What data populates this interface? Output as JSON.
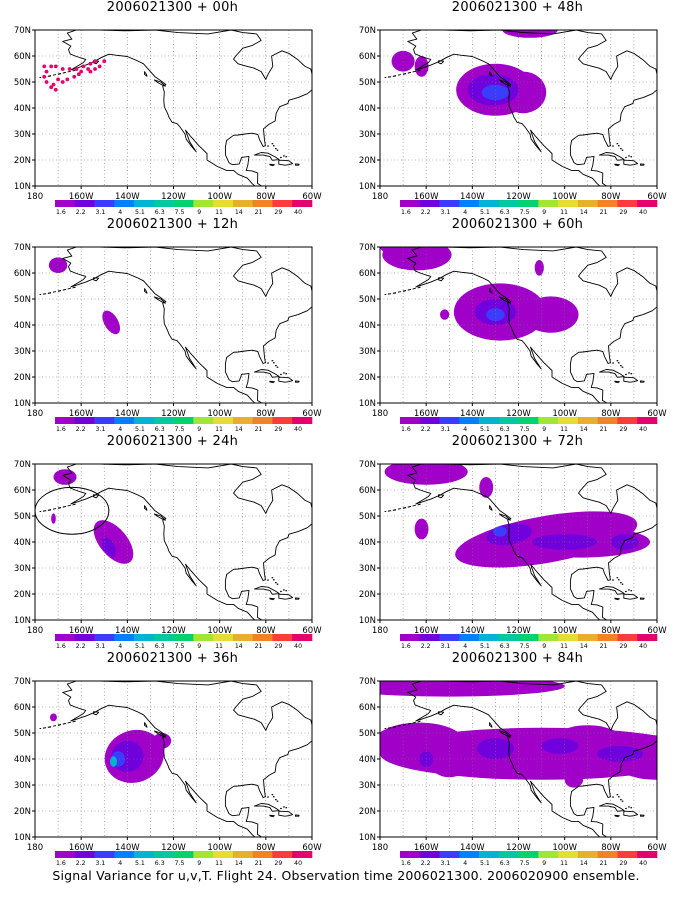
{
  "figure": {
    "footer": "Signal Variance for u,v,T. Flight 24. Observation time 2006021300. 2006020900 ensemble.",
    "lat_labels": [
      "10N",
      "20N",
      "30N",
      "40N",
      "50N",
      "60N",
      "70N"
    ],
    "lon_labels": [
      "180",
      "160W",
      "140W",
      "120W",
      "100W",
      "80W",
      "60W"
    ],
    "colorbar": {
      "labels": [
        "1.6",
        "2.2",
        "3.1",
        "4",
        "5.1",
        "6.3",
        "7.5",
        "9",
        "11",
        "14",
        "21",
        "29",
        "40"
      ],
      "colors": [
        "#a000c8",
        "#7000dc",
        "#3c3cff",
        "#0080ff",
        "#00b4d2",
        "#00c8a0",
        "#00d26e",
        "#a0e632",
        "#e6dc32",
        "#e6af2d",
        "#f08228",
        "#fa3c3c",
        "#e6006e"
      ]
    },
    "field_colors": {
      "low": "#a000c8",
      "mid": "#7000dc",
      "high": "#3c3cff",
      "peak": "#00b4d2",
      "obs": "#e6006e"
    },
    "panels": [
      {
        "title": "2006021300 + 00h"
      },
      {
        "title": "2006021300 + 48h"
      },
      {
        "title": "2006021300 + 12h"
      },
      {
        "title": "2006021300 + 60h"
      },
      {
        "title": "2006021300 + 24h"
      },
      {
        "title": "2006021300 + 72h"
      },
      {
        "title": "2006021300 + 36h"
      },
      {
        "title": "2006021300 + 84h"
      }
    ]
  }
}
